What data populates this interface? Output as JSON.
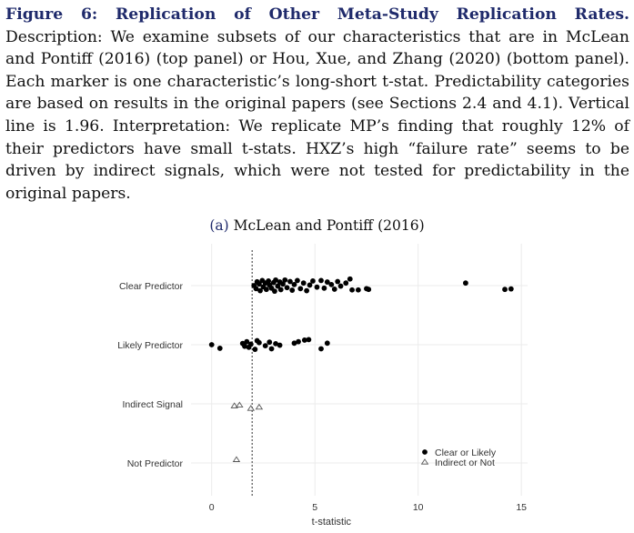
{
  "caption": {
    "figure_label": "Figure 6: Replication of Other Meta-Study Replication Rates.",
    "body": " Description: We examine subsets of our characteristics that are in McLean and Pontiff (2016) (top panel) or Hou, Xue, and Zhang (2020) (bottom panel). Each marker is one characteristic’s long-short t-stat. Predictability categories are based on results in the original papers (see Sections 2.4 and 4.1). Vertical line is 1.96. Interpretation: We replicate MP’s finding that roughly 12% of their predictors have small t-stats. HXZ’s high “failure rate” seems to be driven by indirect signals, which were not tested for predictability in the original papers."
  },
  "panel": {
    "letter": "(a)",
    "title": "McLean and Pontiff (2016)"
  },
  "colors": {
    "marker": "#000000",
    "grid": "#ebebeb",
    "refline": "#444444"
  },
  "chart_data": {
    "type": "scatter",
    "xlabel": "t-statistic",
    "ylabel": "",
    "xlim": [
      -1,
      15.3
    ],
    "x_ticks": [
      0,
      5,
      10,
      15
    ],
    "categories": [
      "Clear Predictor",
      "Likely Predictor",
      "Indirect Signal",
      "Not Predictor"
    ],
    "reference_line": 1.96,
    "grid": true,
    "legend": {
      "position": "bottom-right",
      "entries": [
        {
          "label": "Clear or Likely",
          "marker": "filled-circle"
        },
        {
          "label": "Indirect or Not",
          "marker": "open-triangle"
        }
      ]
    },
    "series": [
      {
        "name": "Clear or Likely",
        "marker": "filled-circle",
        "points": [
          {
            "category": "Clear Predictor",
            "x": 2.05,
            "offset": 0.0
          },
          {
            "category": "Clear Predictor",
            "x": 2.15,
            "offset": -0.12
          },
          {
            "category": "Clear Predictor",
            "x": 2.2,
            "offset": 0.15
          },
          {
            "category": "Clear Predictor",
            "x": 2.3,
            "offset": 0.06
          },
          {
            "category": "Clear Predictor",
            "x": 2.35,
            "offset": -0.2
          },
          {
            "category": "Clear Predictor",
            "x": 2.45,
            "offset": 0.2
          },
          {
            "category": "Clear Predictor",
            "x": 2.5,
            "offset": -0.05
          },
          {
            "category": "Clear Predictor",
            "x": 2.6,
            "offset": 0.1
          },
          {
            "category": "Clear Predictor",
            "x": 2.65,
            "offset": -0.15
          },
          {
            "category": "Clear Predictor",
            "x": 2.75,
            "offset": 0.18
          },
          {
            "category": "Clear Predictor",
            "x": 2.8,
            "offset": 0.02
          },
          {
            "category": "Clear Predictor",
            "x": 2.9,
            "offset": -0.1
          },
          {
            "category": "Clear Predictor",
            "x": 3.0,
            "offset": 0.12
          },
          {
            "category": "Clear Predictor",
            "x": 3.05,
            "offset": -0.22
          },
          {
            "category": "Clear Predictor",
            "x": 3.1,
            "offset": 0.22
          },
          {
            "category": "Clear Predictor",
            "x": 3.2,
            "offset": -0.02
          },
          {
            "category": "Clear Predictor",
            "x": 3.3,
            "offset": 0.14
          },
          {
            "category": "Clear Predictor",
            "x": 3.35,
            "offset": -0.16
          },
          {
            "category": "Clear Predictor",
            "x": 3.45,
            "offset": 0.06
          },
          {
            "category": "Clear Predictor",
            "x": 3.55,
            "offset": 0.22
          },
          {
            "category": "Clear Predictor",
            "x": 3.65,
            "offset": -0.08
          },
          {
            "category": "Clear Predictor",
            "x": 3.8,
            "offset": 0.16
          },
          {
            "category": "Clear Predictor",
            "x": 3.9,
            "offset": -0.18
          },
          {
            "category": "Clear Predictor",
            "x": 4.0,
            "offset": 0.04
          },
          {
            "category": "Clear Predictor",
            "x": 4.15,
            "offset": 0.2
          },
          {
            "category": "Clear Predictor",
            "x": 4.3,
            "offset": -0.12
          },
          {
            "category": "Clear Predictor",
            "x": 4.45,
            "offset": 0.1
          },
          {
            "category": "Clear Predictor",
            "x": 4.6,
            "offset": -0.2
          },
          {
            "category": "Clear Predictor",
            "x": 4.75,
            "offset": 0.02
          },
          {
            "category": "Clear Predictor",
            "x": 4.9,
            "offset": 0.18
          },
          {
            "category": "Clear Predictor",
            "x": 5.1,
            "offset": -0.06
          },
          {
            "category": "Clear Predictor",
            "x": 5.3,
            "offset": 0.2
          },
          {
            "category": "Clear Predictor",
            "x": 5.45,
            "offset": -0.1
          },
          {
            "category": "Clear Predictor",
            "x": 5.6,
            "offset": 0.14
          },
          {
            "category": "Clear Predictor",
            "x": 5.8,
            "offset": 0.04
          },
          {
            "category": "Clear Predictor",
            "x": 5.95,
            "offset": -0.14
          },
          {
            "category": "Clear Predictor",
            "x": 6.1,
            "offset": 0.16
          },
          {
            "category": "Clear Predictor",
            "x": 6.25,
            "offset": -0.02
          },
          {
            "category": "Clear Predictor",
            "x": 6.5,
            "offset": 0.1
          },
          {
            "category": "Clear Predictor",
            "x": 6.7,
            "offset": 0.26
          },
          {
            "category": "Clear Predictor",
            "x": 6.8,
            "offset": -0.17
          },
          {
            "category": "Clear Predictor",
            "x": 7.1,
            "offset": -0.17
          },
          {
            "category": "Clear Predictor",
            "x": 7.5,
            "offset": -0.12
          },
          {
            "category": "Clear Predictor",
            "x": 7.6,
            "offset": -0.15
          },
          {
            "category": "Clear Predictor",
            "x": 12.3,
            "offset": 0.1
          },
          {
            "category": "Clear Predictor",
            "x": 14.2,
            "offset": -0.15
          },
          {
            "category": "Clear Predictor",
            "x": 14.5,
            "offset": -0.13
          },
          {
            "category": "Likely Predictor",
            "x": 0.0,
            "offset": 0.0
          },
          {
            "category": "Likely Predictor",
            "x": 0.4,
            "offset": -0.14
          },
          {
            "category": "Likely Predictor",
            "x": 1.5,
            "offset": 0.05
          },
          {
            "category": "Likely Predictor",
            "x": 1.6,
            "offset": -0.06
          },
          {
            "category": "Likely Predictor",
            "x": 1.7,
            "offset": 0.12
          },
          {
            "category": "Likely Predictor",
            "x": 1.8,
            "offset": -0.1
          },
          {
            "category": "Likely Predictor",
            "x": 1.9,
            "offset": 0.02
          },
          {
            "category": "Likely Predictor",
            "x": 2.1,
            "offset": -0.18
          },
          {
            "category": "Likely Predictor",
            "x": 2.2,
            "offset": 0.16
          },
          {
            "category": "Likely Predictor",
            "x": 2.3,
            "offset": 0.08
          },
          {
            "category": "Likely Predictor",
            "x": 2.6,
            "offset": -0.04
          },
          {
            "category": "Likely Predictor",
            "x": 2.8,
            "offset": 0.1
          },
          {
            "category": "Likely Predictor",
            "x": 2.9,
            "offset": -0.16
          },
          {
            "category": "Likely Predictor",
            "x": 3.1,
            "offset": 0.04
          },
          {
            "category": "Likely Predictor",
            "x": 3.3,
            "offset": -0.02
          },
          {
            "category": "Likely Predictor",
            "x": 4.0,
            "offset": 0.06
          },
          {
            "category": "Likely Predictor",
            "x": 4.2,
            "offset": 0.12
          },
          {
            "category": "Likely Predictor",
            "x": 4.5,
            "offset": 0.18
          },
          {
            "category": "Likely Predictor",
            "x": 4.7,
            "offset": 0.2
          },
          {
            "category": "Likely Predictor",
            "x": 5.3,
            "offset": -0.16
          },
          {
            "category": "Likely Predictor",
            "x": 5.6,
            "offset": 0.06
          }
        ]
      },
      {
        "name": "Indirect or Not",
        "marker": "open-triangle",
        "points": [
          {
            "category": "Indirect Signal",
            "x": 1.1,
            "offset": -0.08
          },
          {
            "category": "Indirect Signal",
            "x": 1.35,
            "offset": -0.05
          },
          {
            "category": "Indirect Signal",
            "x": 1.9,
            "offset": -0.18
          },
          {
            "category": "Indirect Signal",
            "x": 2.3,
            "offset": -0.13
          },
          {
            "category": "Not Predictor",
            "x": 1.2,
            "offset": 0.13
          }
        ]
      }
    ]
  }
}
